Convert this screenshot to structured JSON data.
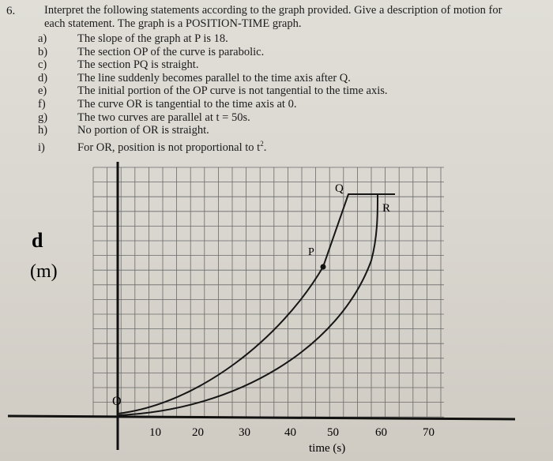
{
  "question": {
    "number": "6.",
    "intro_line1": "Interpret the following statements according to the graph provided.  Give a description of motion for",
    "intro_line2": "each statement.  The graph is a POSITION-TIME graph.",
    "statements": [
      {
        "label": "a)",
        "text": "The slope of the graph at P is 18."
      },
      {
        "label": "b)",
        "text": "The section OP of the curve is parabolic."
      },
      {
        "label": "c)",
        "text": "The section PQ is straight."
      },
      {
        "label": "d)",
        "text": "The line suddenly becomes parallel to the time axis after Q."
      },
      {
        "label": "e)",
        "text": "The initial portion of the OP curve is not tangential to the time axis."
      },
      {
        "label": "f)",
        "text": "The curve OR is tangential to the time axis at 0."
      },
      {
        "label": "g)",
        "text": "The two curves are parallel at t = 50s."
      },
      {
        "label": "h)",
        "text": "No portion of OR is straight."
      },
      {
        "label": "i)",
        "text": "For OR, position is not proportional to t"
      }
    ],
    "superscript": "2",
    "end_period": "."
  },
  "graph": {
    "y_label_symbol": "d",
    "y_label_unit": "(m)",
    "x_label": "time (s)",
    "x_ticks": [
      "10",
      "20",
      "30",
      "40",
      "50",
      "60",
      "70"
    ],
    "point_labels": {
      "O": "O",
      "P": "P",
      "Q": "Q",
      "R": "R"
    },
    "curves": {
      "OPQ": {
        "parabolic_until_t": 47,
        "straight_to_t": 52,
        "flat_after_t": 52
      },
      "OR": {
        "tangent_at_origin": true,
        "flat_after_t": 60
      }
    }
  }
}
